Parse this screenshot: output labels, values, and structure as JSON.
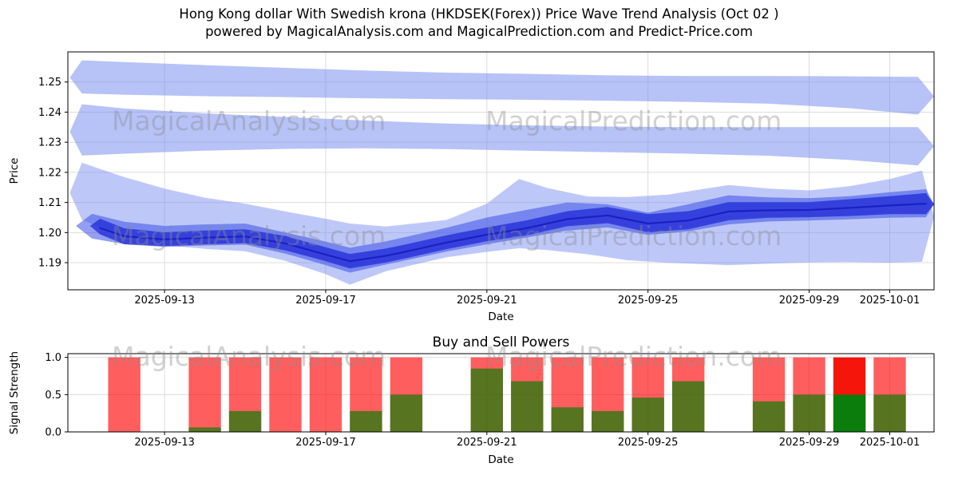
{
  "header": {
    "title_line1": "Hong Kong dollar With Swedish krona (HKDSEK(Forex)) Price Wave Trend Analysis (Oct 02 )",
    "title_line2": "powered by MagicalAnalysis.com and MagicalPrediction.com and Predict-Price.com"
  },
  "watermark": {
    "left_text": "MagicalAnalysis.com",
    "right_text": "MagicalPrediction.com",
    "color": "#8c8c8c",
    "opacity": 0.4
  },
  "chart_data": [
    {
      "id": "price_wave",
      "type": "area",
      "xlabel": "Date",
      "ylabel": "Price",
      "xlim": [
        -0.4,
        21.1
      ],
      "ylim": [
        1.181,
        1.26
      ],
      "grid": true,
      "grid_color": "#dcdcdc",
      "yticks": [
        {
          "v": 1.19,
          "label": "1.19"
        },
        {
          "v": 1.2,
          "label": "1.20"
        },
        {
          "v": 1.21,
          "label": "1.21"
        },
        {
          "v": 1.22,
          "label": "1.22"
        },
        {
          "v": 1.23,
          "label": "1.23"
        },
        {
          "v": 1.24,
          "label": "1.24"
        },
        {
          "v": 1.25,
          "label": "1.25"
        }
      ],
      "xticks": [
        {
          "d": 2,
          "label": "2025-09-13"
        },
        {
          "d": 6,
          "label": "2025-09-17"
        },
        {
          "d": 10,
          "label": "2025-09-21"
        },
        {
          "d": 14,
          "label": "2025-09-25"
        },
        {
          "d": 18,
          "label": "2025-09-29"
        },
        {
          "d": 20,
          "label": "2025-10-01"
        }
      ],
      "bands": [
        {
          "name": "upper-forecast-band",
          "color": "#6f86ef",
          "opacity": 0.5,
          "points": [
            [
              -0.35,
              1.2515,
              1.2515
            ],
            [
              -0.05,
              1.2462,
              1.2572
            ],
            [
              1,
              1.2458,
              1.2566
            ],
            [
              3,
              1.2453,
              1.2556
            ],
            [
              5,
              1.245,
              1.2547
            ],
            [
              7,
              1.2446,
              1.2538
            ],
            [
              9,
              1.2443,
              1.2531
            ],
            [
              11,
              1.2441,
              1.2527
            ],
            [
              13,
              1.2438,
              1.2522
            ],
            [
              15,
              1.2434,
              1.252
            ],
            [
              17,
              1.2428,
              1.252
            ],
            [
              19,
              1.2413,
              1.2519
            ],
            [
              20.7,
              1.2392,
              1.2517
            ],
            [
              21.1,
              1.2452,
              1.2452
            ]
          ]
        },
        {
          "name": "middle-forecast-band",
          "color": "#6f86ef",
          "opacity": 0.5,
          "points": [
            [
              -0.35,
              1.2335,
              1.2335
            ],
            [
              -0.05,
              1.2256,
              1.2426
            ],
            [
              1,
              1.2262,
              1.2412
            ],
            [
              3,
              1.2272,
              1.2396
            ],
            [
              5,
              1.2278,
              1.2384
            ],
            [
              7,
              1.228,
              1.2372
            ],
            [
              9,
              1.2277,
              1.2362
            ],
            [
              11,
              1.2272,
              1.2356
            ],
            [
              13,
              1.2267,
              1.2352
            ],
            [
              15,
              1.2262,
              1.235
            ],
            [
              17,
              1.2255,
              1.235
            ],
            [
              19,
              1.2241,
              1.235
            ],
            [
              20.7,
              1.2223,
              1.235
            ],
            [
              21.1,
              1.2287,
              1.2287
            ]
          ]
        },
        {
          "name": "outer-price-band",
          "color": "#6f86ef",
          "opacity": 0.45,
          "points": [
            [
              -0.35,
              1.2132,
              1.2132
            ],
            [
              -0.05,
              1.2042,
              1.2232
            ],
            [
              1,
              1.1986,
              1.2184
            ],
            [
              2,
              1.1958,
              1.2146
            ],
            [
              3,
              1.1946,
              1.2116
            ],
            [
              4,
              1.1938,
              1.2096
            ],
            [
              5,
              1.1906,
              1.207
            ],
            [
              6,
              1.1862,
              1.2046
            ],
            [
              6.6,
              1.1827,
              1.203
            ],
            [
              7.5,
              1.1872,
              1.202
            ],
            [
              9,
              1.1918,
              1.2042
            ],
            [
              10,
              1.1936,
              1.2096
            ],
            [
              10.8,
              1.1948,
              1.2178
            ],
            [
              11.5,
              1.1942,
              1.2148
            ],
            [
              12.5,
              1.1928,
              1.212
            ],
            [
              13.5,
              1.1908,
              1.2118
            ],
            [
              14.5,
              1.19,
              1.2126
            ],
            [
              16,
              1.1892,
              1.2158
            ],
            [
              17,
              1.1897,
              1.2146
            ],
            [
              18,
              1.1901,
              1.214
            ],
            [
              19,
              1.1902,
              1.2154
            ],
            [
              20,
              1.19,
              1.2178
            ],
            [
              20.8,
              1.1903,
              1.2206
            ],
            [
              21.1,
              1.2052,
              1.2052
            ]
          ]
        },
        {
          "name": "mid-price-band",
          "color": "#3a50e6",
          "opacity": 0.55,
          "points": [
            [
              -0.2,
              1.2022,
              1.2022
            ],
            [
              0.2,
              1.198,
              1.2062
            ],
            [
              1,
              1.1962,
              1.2036
            ],
            [
              2,
              1.1952,
              1.2022
            ],
            [
              3,
              1.1957,
              1.2027
            ],
            [
              4,
              1.196,
              1.203
            ],
            [
              5,
              1.193,
              1.2
            ],
            [
              6,
              1.1892,
              1.197
            ],
            [
              6.6,
              1.1867,
              1.195
            ],
            [
              7.5,
              1.1894,
              1.1971
            ],
            [
              8,
              1.1908,
              1.1986
            ],
            [
              9,
              1.1937,
              1.2016
            ],
            [
              10,
              1.1961,
              1.205
            ],
            [
              11,
              1.1984,
              1.2076
            ],
            [
              12,
              1.2007,
              1.21
            ],
            [
              13,
              1.2017,
              1.2094
            ],
            [
              14,
              1.1992,
              1.2066
            ],
            [
              15,
              1.2004,
              1.2094
            ],
            [
              16,
              1.2027,
              1.2124
            ],
            [
              17,
              1.2037,
              1.2117
            ],
            [
              18,
              1.204,
              1.2114
            ],
            [
              19,
              1.2044,
              1.2121
            ],
            [
              20,
              1.2049,
              1.2134
            ],
            [
              20.9,
              1.2051,
              1.2144
            ],
            [
              21.1,
              1.2094,
              1.2094
            ]
          ]
        },
        {
          "name": "core-price-band",
          "color": "#2430d8",
          "opacity": 0.8,
          "points": [
            [
              0.15,
              1.2022,
              1.2022
            ],
            [
              0.4,
              1.1994,
              1.2046
            ],
            [
              1,
              1.1961,
              1.2014
            ],
            [
              2,
              1.1955,
              1.2001
            ],
            [
              3,
              1.1961,
              1.2007
            ],
            [
              4,
              1.1965,
              1.2011
            ],
            [
              5,
              1.1941,
              1.1989
            ],
            [
              6,
              1.1905,
              1.1951
            ],
            [
              6.6,
              1.1881,
              1.1929
            ],
            [
              7.5,
              1.1901,
              1.1947
            ],
            [
              8,
              1.1915,
              1.1961
            ],
            [
              9,
              1.1945,
              1.1991
            ],
            [
              10,
              1.1971,
              1.2017
            ],
            [
              11,
              1.1991,
              1.2041
            ],
            [
              12,
              1.2021,
              1.2071
            ],
            [
              13,
              1.2031,
              1.2085
            ],
            [
              14,
              1.2001,
              1.2061
            ],
            [
              15,
              1.2011,
              1.2071
            ],
            [
              16,
              1.2041,
              1.2101
            ],
            [
              17,
              1.2049,
              1.2101
            ],
            [
              18,
              1.2051,
              1.2101
            ],
            [
              19,
              1.2055,
              1.2111
            ],
            [
              20,
              1.2061,
              1.2121
            ],
            [
              20.9,
              1.2061,
              1.2131
            ],
            [
              21.1,
              1.2094,
              1.2094
            ]
          ]
        }
      ],
      "lines": [
        {
          "name": "price-trace-dark",
          "color": "#1a1ac0",
          "width": 2.2,
          "opacity": 0.85,
          "points": [
            [
              0.4,
              1.2015
            ],
            [
              1,
              1.1988
            ],
            [
              2,
              1.1977
            ],
            [
              3,
              1.1983
            ],
            [
              4,
              1.1987
            ],
            [
              5,
              1.1964
            ],
            [
              6,
              1.1927
            ],
            [
              6.6,
              1.1905
            ],
            [
              7.5,
              1.1923
            ],
            [
              8,
              1.1937
            ],
            [
              9,
              1.1967
            ],
            [
              10,
              1.1993
            ],
            [
              11,
              1.2015
            ],
            [
              12,
              1.2045
            ],
            [
              13,
              1.2057
            ],
            [
              14,
              1.203
            ],
            [
              15,
              1.204
            ],
            [
              16,
              1.207
            ],
            [
              17,
              1.2074
            ],
            [
              18,
              1.2075
            ],
            [
              19,
              1.2082
            ],
            [
              20,
              1.209
            ],
            [
              20.9,
              1.2096
            ]
          ]
        },
        {
          "name": "price-trace-light",
          "color": "#3b3bd8",
          "width": 1.4,
          "opacity": 0.75,
          "points": [
            [
              0.4,
              1.2
            ],
            [
              1,
              1.1972
            ],
            [
              2,
              1.1962
            ],
            [
              3,
              1.1968
            ],
            [
              4,
              1.1972
            ],
            [
              5,
              1.1948
            ],
            [
              6,
              1.1912
            ],
            [
              6.6,
              1.189
            ],
            [
              7.5,
              1.1908
            ],
            [
              8,
              1.1922
            ],
            [
              9,
              1.1952
            ],
            [
              10,
              1.1978
            ],
            [
              11,
              1.2
            ],
            [
              12,
              1.203
            ],
            [
              13,
              1.204
            ],
            [
              14,
              1.2012
            ],
            [
              15,
              1.2022
            ],
            [
              16,
              1.2052
            ],
            [
              17,
              1.2058
            ],
            [
              18,
              1.2059
            ],
            [
              19,
              1.2065
            ],
            [
              20,
              1.2072
            ],
            [
              20.9,
              1.2078
            ]
          ]
        }
      ]
    },
    {
      "id": "buy_sell",
      "type": "bar",
      "title": "Buy and Sell Powers",
      "xlabel": "Date",
      "ylabel": "Signal Strength",
      "xlim": [
        -0.4,
        21.1
      ],
      "ylim": [
        0,
        1.05
      ],
      "grid": true,
      "grid_color": "#dcdcdc",
      "bar_width": 0.8,
      "yticks": [
        {
          "v": 0,
          "label": "0.0"
        },
        {
          "v": 0.5,
          "label": "0.5"
        },
        {
          "v": 1,
          "label": "1.0"
        }
      ],
      "xticks": [
        {
          "d": 2,
          "label": "2025-09-13"
        },
        {
          "d": 6,
          "label": "2025-09-17"
        },
        {
          "d": 10,
          "label": "2025-09-21"
        },
        {
          "d": 14,
          "label": "2025-09-25"
        },
        {
          "d": 18,
          "label": "2025-09-29"
        },
        {
          "d": 20,
          "label": "2025-10-01"
        }
      ],
      "colors": {
        "sell": "#ff0000",
        "sell_opacity": 0.63,
        "buy": "#008000",
        "buy_opacity": 0.66,
        "highlight_sell": "#f5150a",
        "highlight_buy": "#0a7d0c",
        "highlight_opacity": 1
      },
      "bars": [
        {
          "date": "2025-09-12",
          "d": 1,
          "sell": 1.0,
          "buy": 0.0,
          "highlight": false
        },
        {
          "date": "2025-09-14",
          "d": 3,
          "sell": 1.0,
          "buy": 0.06,
          "highlight": false
        },
        {
          "date": "2025-09-15",
          "d": 4,
          "sell": 1.0,
          "buy": 0.28,
          "highlight": false
        },
        {
          "date": "2025-09-16",
          "d": 5,
          "sell": 1.0,
          "buy": 0.0,
          "highlight": false
        },
        {
          "date": "2025-09-17",
          "d": 6,
          "sell": 1.0,
          "buy": 0.0,
          "highlight": false
        },
        {
          "date": "2025-09-18",
          "d": 7,
          "sell": 1.0,
          "buy": 0.28,
          "highlight": false
        },
        {
          "date": "2025-09-19",
          "d": 8,
          "sell": 1.0,
          "buy": 0.5,
          "highlight": false
        },
        {
          "date": "2025-09-21",
          "d": 10,
          "sell": 1.0,
          "buy": 0.85,
          "highlight": false
        },
        {
          "date": "2025-09-22",
          "d": 11,
          "sell": 1.0,
          "buy": 0.68,
          "highlight": false
        },
        {
          "date": "2025-09-23",
          "d": 12,
          "sell": 1.0,
          "buy": 0.33,
          "highlight": false
        },
        {
          "date": "2025-09-24",
          "d": 13,
          "sell": 1.0,
          "buy": 0.28,
          "highlight": false
        },
        {
          "date": "2025-09-25",
          "d": 14,
          "sell": 1.0,
          "buy": 0.46,
          "highlight": false
        },
        {
          "date": "2025-09-26",
          "d": 15,
          "sell": 1.0,
          "buy": 0.68,
          "highlight": false
        },
        {
          "date": "2025-09-28",
          "d": 17,
          "sell": 1.0,
          "buy": 0.41,
          "highlight": false
        },
        {
          "date": "2025-09-29",
          "d": 18,
          "sell": 1.0,
          "buy": 0.5,
          "highlight": false
        },
        {
          "date": "2025-09-30",
          "d": 19,
          "sell": 1.0,
          "buy": 0.5,
          "highlight": true
        },
        {
          "date": "2025-10-01",
          "d": 20,
          "sell": 1.0,
          "buy": 0.5,
          "highlight": false
        }
      ]
    }
  ]
}
